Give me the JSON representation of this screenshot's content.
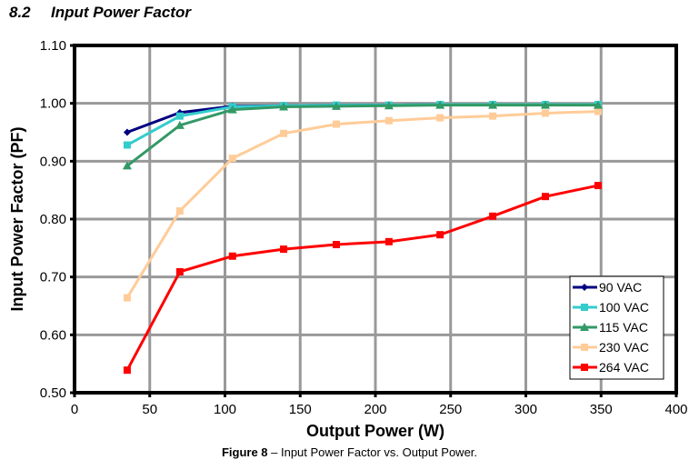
{
  "section": {
    "number": "8.2",
    "title": "Input Power Factor"
  },
  "caption": {
    "label": "Figure 8",
    "text": " – Input Power Factor vs. Output Power."
  },
  "chart_data": {
    "type": "line",
    "title": "",
    "xlabel": "Output Power (W)",
    "ylabel": "Input Power Factor (PF)",
    "xlim": [
      0,
      400
    ],
    "ylim": [
      0.5,
      1.1
    ],
    "xticks": [
      "0",
      "50",
      "100",
      "150",
      "200",
      "250",
      "300",
      "350",
      "400"
    ],
    "xtick_values": [
      0,
      50,
      100,
      150,
      200,
      250,
      300,
      350,
      400
    ],
    "yticks": [
      "0.50",
      "0.60",
      "0.70",
      "0.80",
      "0.90",
      "1.00",
      "1.10"
    ],
    "ytick_values": [
      0.5,
      0.6,
      0.7,
      0.8,
      0.9,
      1.0,
      1.1
    ],
    "grid": true,
    "legend_position": "bottom-right",
    "x": [
      35,
      70,
      105,
      139,
      174,
      209,
      243,
      278,
      313,
      348
    ],
    "series": [
      {
        "name": "90 VAC",
        "color": "#000080",
        "marker": "diamond",
        "values": [
          0.95,
          0.984,
          0.995,
          0.996,
          0.997,
          0.997,
          0.998,
          0.998,
          0.998,
          0.998
        ]
      },
      {
        "name": "100 VAC",
        "color": "#33CCCC",
        "marker": "square",
        "values": [
          0.928,
          0.978,
          0.994,
          0.996,
          0.997,
          0.997,
          0.998,
          0.998,
          0.998,
          0.998
        ]
      },
      {
        "name": "115 VAC",
        "color": "#339966",
        "marker": "triangle",
        "values": [
          0.892,
          0.962,
          0.989,
          0.994,
          0.995,
          0.996,
          0.997,
          0.997,
          0.997,
          0.997
        ]
      },
      {
        "name": "230 VAC",
        "color": "#FFCC99",
        "marker": "square",
        "values": [
          0.664,
          0.814,
          0.905,
          0.948,
          0.964,
          0.97,
          0.975,
          0.978,
          0.983,
          0.986
        ]
      },
      {
        "name": "264 VAC",
        "color": "#FF0000",
        "marker": "square",
        "values": [
          0.539,
          0.709,
          0.736,
          0.748,
          0.756,
          0.761,
          0.773,
          0.805,
          0.839,
          0.858
        ]
      }
    ]
  }
}
